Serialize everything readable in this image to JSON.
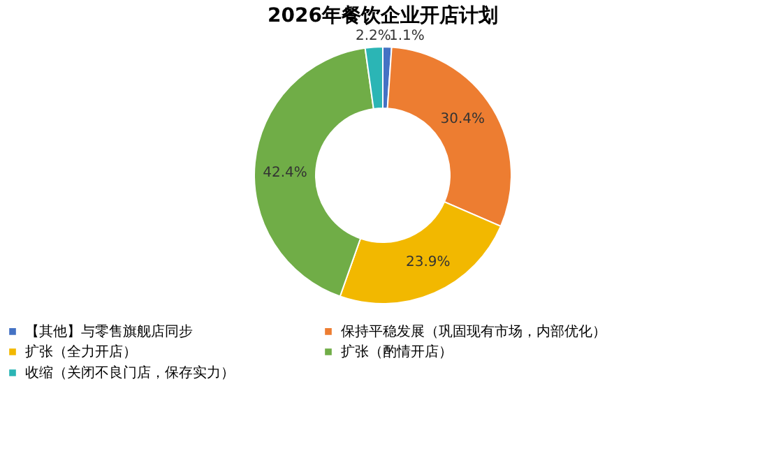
{
  "chart_data": {
    "type": "donut",
    "title": "2026年餐饮企业开店计划",
    "categories": [
      "【其他】与零售旗舰店同步",
      "保持平稳发展（巩固现有市场，内部优化）",
      "扩张（全力开店）",
      "扩张（酌情开店）",
      "收缩（关闭不良门店，保存实力）"
    ],
    "values": [
      1.1,
      30.4,
      23.9,
      42.4,
      2.2
    ],
    "colors": [
      "#4472c4",
      "#ed7d31",
      "#f2b800",
      "#70ad47",
      "#2bb5b5"
    ],
    "value_labels": [
      "1.1%",
      "30.4%",
      "23.9%",
      "42.4%",
      "2.2%"
    ],
    "legend": "bottom"
  }
}
